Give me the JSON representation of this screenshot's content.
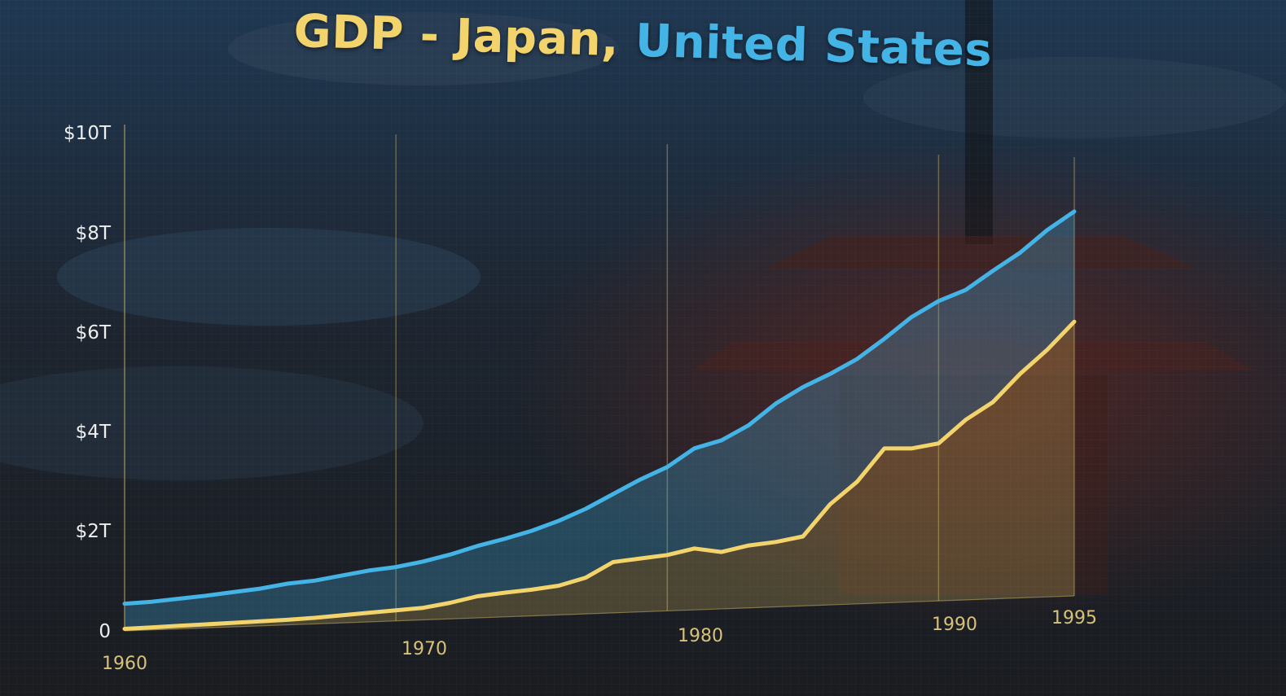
{
  "title": {
    "part1": "GDP - Japan,",
    "part2": "United States"
  },
  "colors": {
    "japan": "#f3d36b",
    "united_states": "#44b3e6",
    "gridline": "#cdb86a",
    "background": "#1b1f26"
  },
  "chart_data": {
    "type": "area",
    "x_tick_labels": [
      "1960",
      "1970",
      "1980",
      "1990",
      "1995"
    ],
    "y_tick_labels": [
      "0",
      "$2T",
      "$4T",
      "$6T",
      "$8T",
      "$10T"
    ],
    "ylim": [
      0,
      10
    ],
    "xlim": [
      1960,
      1995
    ],
    "grid": true,
    "series": [
      {
        "name": "United States",
        "color": "#44b3e6",
        "x": [
          1960,
          1961,
          1962,
          1963,
          1964,
          1965,
          1966,
          1967,
          1968,
          1969,
          1970,
          1971,
          1972,
          1973,
          1974,
          1975,
          1976,
          1977,
          1978,
          1979,
          1980,
          1981,
          1982,
          1983,
          1984,
          1985,
          1986,
          1987,
          1988,
          1989,
          1990,
          1991,
          1992,
          1993,
          1994,
          1995
        ],
        "values": [
          0.54,
          0.56,
          0.6,
          0.64,
          0.69,
          0.74,
          0.82,
          0.86,
          0.94,
          1.02,
          1.07,
          1.16,
          1.28,
          1.43,
          1.55,
          1.69,
          1.87,
          2.09,
          2.36,
          2.63,
          2.86,
          3.21,
          3.35,
          3.63,
          4.04,
          4.35,
          4.59,
          4.87,
          5.25,
          5.66,
          5.96,
          6.16,
          6.52,
          6.86,
          7.29,
          7.64
        ]
      },
      {
        "name": "Japan",
        "color": "#f3d36b",
        "x": [
          1960,
          1961,
          1962,
          1963,
          1964,
          1965,
          1966,
          1967,
          1968,
          1969,
          1970,
          1971,
          1972,
          1973,
          1974,
          1975,
          1976,
          1977,
          1978,
          1979,
          1980,
          1981,
          1982,
          1983,
          1984,
          1985,
          1986,
          1987,
          1988,
          1989,
          1990,
          1991,
          1992,
          1993,
          1994,
          1995
        ],
        "values": [
          0.04,
          0.05,
          0.06,
          0.07,
          0.08,
          0.09,
          0.1,
          0.12,
          0.15,
          0.18,
          0.21,
          0.24,
          0.32,
          0.43,
          0.48,
          0.52,
          0.58,
          0.72,
          1.01,
          1.06,
          1.11,
          1.22,
          1.13,
          1.24,
          1.29,
          1.38,
          2.0,
          2.43,
          3.07,
          3.05,
          3.13,
          3.58,
          3.91,
          4.45,
          4.91,
          5.45
        ]
      }
    ]
  }
}
